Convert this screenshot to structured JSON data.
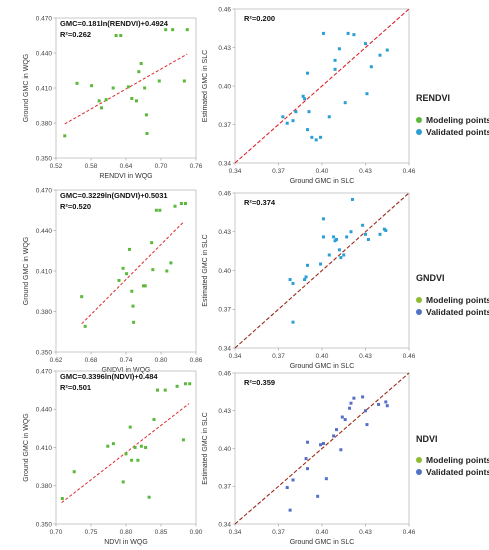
{
  "colors": {
    "modeling": "#5cb83a",
    "validated": "#2b9fd4",
    "validated_alt": "#5570c8",
    "modeling_alt": "#8bbd2f",
    "fit_line": "#dd2a2a",
    "diag_line": "#e0242a",
    "diag_dark": "#9a2a1a"
  },
  "chart_data": [
    {
      "type": "scatter",
      "panel": "RENDVI-fit",
      "xlabel": "RENDVI in WQG",
      "ylabel": "Ground GMC in WQG",
      "xlim": [
        0.52,
        0.76
      ],
      "ylim": [
        0.35,
        0.47
      ],
      "xticks": [
        "0.52",
        "0.58",
        "0.64",
        "0.70",
        "0.76"
      ],
      "yticks": [
        "0.350",
        "0.380",
        "0.410",
        "0.440",
        "0.470"
      ],
      "annotation": [
        "GMC=0.181ln(RENDVI)+0.4924",
        "R²=0.262"
      ],
      "fit": {
        "kind": "ln",
        "a": 0.181,
        "b": 0.4924,
        "x": [
          0.535,
          0.745
        ]
      },
      "points": [
        [
          0.535,
          0.369
        ],
        [
          0.556,
          0.414
        ],
        [
          0.581,
          0.412
        ],
        [
          0.594,
          0.399
        ],
        [
          0.598,
          0.393
        ],
        [
          0.606,
          0.4
        ],
        [
          0.618,
          0.41
        ],
        [
          0.623,
          0.455
        ],
        [
          0.631,
          0.455
        ],
        [
          0.644,
          0.411
        ],
        [
          0.65,
          0.401
        ],
        [
          0.658,
          0.399
        ],
        [
          0.662,
          0.424
        ],
        [
          0.666,
          0.431
        ],
        [
          0.672,
          0.41
        ],
        [
          0.675,
          0.387
        ],
        [
          0.676,
          0.371
        ],
        [
          0.697,
          0.416
        ],
        [
          0.708,
          0.46
        ],
        [
          0.72,
          0.46
        ],
        [
          0.74,
          0.416
        ],
        [
          0.745,
          0.46
        ]
      ]
    },
    {
      "type": "scatter",
      "panel": "RENDVI-validation",
      "xlabel": "Ground GMC in SLC",
      "ylabel": "Estimated GMC in SLC",
      "xlim": [
        0.34,
        0.46
      ],
      "ylim": [
        0.34,
        0.46
      ],
      "xticks": [
        "0.34",
        "0.37",
        "0.40",
        "0.43",
        "0.46"
      ],
      "yticks": [
        "0.34",
        "0.37",
        "0.40",
        "0.43",
        "0.46"
      ],
      "annotation": [
        "R²=0.200"
      ],
      "points": [
        [
          0.373,
          0.376
        ],
        [
          0.376,
          0.371
        ],
        [
          0.38,
          0.373
        ],
        [
          0.382,
          0.38
        ],
        [
          0.387,
          0.392
        ],
        [
          0.388,
          0.39
        ],
        [
          0.39,
          0.41
        ],
        [
          0.39,
          0.366
        ],
        [
          0.391,
          0.38
        ],
        [
          0.393,
          0.36
        ],
        [
          0.396,
          0.358
        ],
        [
          0.399,
          0.36
        ],
        [
          0.401,
          0.441
        ],
        [
          0.405,
          0.376
        ],
        [
          0.409,
          0.42
        ],
        [
          0.409,
          0.413
        ],
        [
          0.412,
          0.429
        ],
        [
          0.416,
          0.387
        ],
        [
          0.418,
          0.441
        ],
        [
          0.422,
          0.44
        ],
        [
          0.43,
          0.433
        ],
        [
          0.431,
          0.394
        ],
        [
          0.434,
          0.415
        ],
        [
          0.44,
          0.424
        ],
        [
          0.445,
          0.428
        ]
      ]
    },
    {
      "type": "scatter",
      "panel": "GNDVI-fit",
      "xlabel": "GNDVI in WQG",
      "ylabel": "Ground GMC in WQG",
      "xlim": [
        0.62,
        0.86
      ],
      "ylim": [
        0.35,
        0.47
      ],
      "xticks": [
        "0.62",
        "0.68",
        "0.74",
        "0.80",
        "0.86"
      ],
      "yticks": [
        "0.350",
        "0.380",
        "0.410",
        "0.440",
        "0.470"
      ],
      "annotation": [
        "GMC=0.3229ln(GNDVI)+0.5031",
        "R²=0.520"
      ],
      "fit": {
        "kind": "ln",
        "a": 0.3229,
        "b": 0.5031,
        "x": [
          0.664,
          0.838
        ]
      },
      "points": [
        [
          0.664,
          0.391
        ],
        [
          0.67,
          0.369
        ],
        [
          0.728,
          0.403
        ],
        [
          0.735,
          0.412
        ],
        [
          0.741,
          0.408
        ],
        [
          0.746,
          0.426
        ],
        [
          0.75,
          0.395
        ],
        [
          0.752,
          0.384
        ],
        [
          0.753,
          0.372
        ],
        [
          0.77,
          0.399
        ],
        [
          0.773,
          0.399
        ],
        [
          0.784,
          0.431
        ],
        [
          0.786,
          0.411
        ],
        [
          0.792,
          0.455
        ],
        [
          0.798,
          0.455
        ],
        [
          0.81,
          0.41
        ],
        [
          0.817,
          0.416
        ],
        [
          0.824,
          0.458
        ],
        [
          0.835,
          0.46
        ],
        [
          0.842,
          0.46
        ]
      ]
    },
    {
      "type": "scatter",
      "panel": "GNDVI-validation",
      "xlabel": "Ground GMC in SLC",
      "ylabel": "Estimated GMC in SLC",
      "xlim": [
        0.34,
        0.46
      ],
      "ylim": [
        0.34,
        0.46
      ],
      "xticks": [
        "0.34",
        "0.37",
        "0.40",
        "0.43",
        "0.46"
      ],
      "yticks": [
        "0.34",
        "0.37",
        "0.40",
        "0.43",
        "0.46"
      ],
      "annotation": [
        "R²=0.374"
      ],
      "points": [
        [
          0.378,
          0.393
        ],
        [
          0.38,
          0.36
        ],
        [
          0.38,
          0.39
        ],
        [
          0.388,
          0.393
        ],
        [
          0.389,
          0.395
        ],
        [
          0.39,
          0.404
        ],
        [
          0.399,
          0.405
        ],
        [
          0.401,
          0.426
        ],
        [
          0.401,
          0.44
        ],
        [
          0.405,
          0.412
        ],
        [
          0.408,
          0.426
        ],
        [
          0.409,
          0.423
        ],
        [
          0.41,
          0.424
        ],
        [
          0.412,
          0.416
        ],
        [
          0.413,
          0.41
        ],
        [
          0.415,
          0.412
        ],
        [
          0.417,
          0.426
        ],
        [
          0.42,
          0.43
        ],
        [
          0.421,
          0.455
        ],
        [
          0.428,
          0.435
        ],
        [
          0.43,
          0.428
        ],
        [
          0.432,
          0.424
        ],
        [
          0.44,
          0.428
        ],
        [
          0.443,
          0.432
        ],
        [
          0.444,
          0.431
        ]
      ]
    },
    {
      "type": "scatter",
      "panel": "NDVI-fit",
      "xlabel": "NDVI in WQG",
      "ylabel": "Ground GMC in WQG",
      "xlim": [
        0.7,
        0.9
      ],
      "ylim": [
        0.35,
        0.47
      ],
      "xticks": [
        "0.70",
        "0.75",
        "0.80",
        "0.85",
        "0.90"
      ],
      "yticks": [
        "0.350",
        "0.380",
        "0.410",
        "0.440",
        "0.470"
      ],
      "annotation": [
        "GMC=0.3396ln(NDVI)+0.484",
        "R²=0.501"
      ],
      "fit": {
        "kind": "ln",
        "a": 0.3396,
        "b": 0.484,
        "x": [
          0.708,
          0.89
        ]
      },
      "points": [
        [
          0.709,
          0.37
        ],
        [
          0.726,
          0.391
        ],
        [
          0.774,
          0.411
        ],
        [
          0.782,
          0.413
        ],
        [
          0.796,
          0.383
        ],
        [
          0.8,
          0.405
        ],
        [
          0.806,
          0.426
        ],
        [
          0.808,
          0.4
        ],
        [
          0.813,
          0.41
        ],
        [
          0.817,
          0.4
        ],
        [
          0.822,
          0.411
        ],
        [
          0.828,
          0.41
        ],
        [
          0.833,
          0.371
        ],
        [
          0.84,
          0.432
        ],
        [
          0.845,
          0.455
        ],
        [
          0.856,
          0.455
        ],
        [
          0.873,
          0.458
        ],
        [
          0.882,
          0.416
        ],
        [
          0.885,
          0.46
        ],
        [
          0.891,
          0.46
        ]
      ]
    },
    {
      "type": "scatter",
      "panel": "NDVI-validation",
      "xlabel": "Ground GMC in SLC",
      "ylabel": "Estimated GMC in SLC",
      "xlim": [
        0.34,
        0.46
      ],
      "ylim": [
        0.34,
        0.46
      ],
      "xticks": [
        "0.34",
        "0.37",
        "0.40",
        "0.43",
        "0.46"
      ],
      "yticks": [
        "0.34",
        "0.37",
        "0.40",
        "0.43",
        "0.46"
      ],
      "annotation": [
        "R²=0.359"
      ],
      "points": [
        [
          0.376,
          0.369
        ],
        [
          0.378,
          0.351
        ],
        [
          0.38,
          0.375
        ],
        [
          0.389,
          0.392
        ],
        [
          0.39,
          0.405
        ],
        [
          0.39,
          0.384
        ],
        [
          0.397,
          0.362
        ],
        [
          0.399,
          0.403
        ],
        [
          0.401,
          0.404
        ],
        [
          0.403,
          0.376
        ],
        [
          0.408,
          0.41
        ],
        [
          0.41,
          0.415
        ],
        [
          0.413,
          0.399
        ],
        [
          0.414,
          0.425
        ],
        [
          0.416,
          0.423
        ],
        [
          0.419,
          0.432
        ],
        [
          0.42,
          0.436
        ],
        [
          0.422,
          0.44
        ],
        [
          0.428,
          0.441
        ],
        [
          0.43,
          0.43
        ],
        [
          0.431,
          0.419
        ],
        [
          0.439,
          0.435
        ],
        [
          0.444,
          0.437
        ],
        [
          0.445,
          0.434
        ]
      ]
    }
  ],
  "legends": [
    {
      "title": "RENDVI",
      "items": [
        "Modeling points",
        "Validated points"
      ]
    },
    {
      "title": "GNDVI",
      "items": [
        "Modeling points",
        "Validated points"
      ]
    },
    {
      "title": "NDVI",
      "items": [
        "Modeling points",
        "Validated points"
      ]
    }
  ]
}
